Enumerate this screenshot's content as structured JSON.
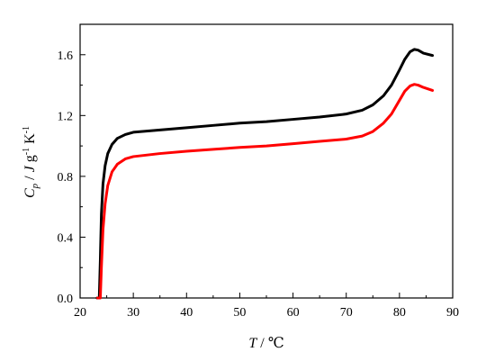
{
  "chart_data": {
    "type": "line",
    "xlabel_var": "T",
    "xlabel_unit": "℃",
    "ylabel_var": "C",
    "ylabel_sub": "p",
    "ylabel_unit_main": "J g",
    "ylabel_unit_exp": "-1",
    "ylabel_unit_end": "K",
    "ylabel_unit_end_exp": "-1",
    "xlim": [
      20,
      90
    ],
    "ylim": [
      0.0,
      1.8
    ],
    "x_ticks": [
      20,
      30,
      40,
      50,
      60,
      70,
      80,
      90
    ],
    "y_ticks": [
      0.0,
      0.4,
      0.8,
      1.2,
      1.6
    ],
    "y_tick_labels": [
      "0.0",
      "0.4",
      "0.8",
      "1.2",
      "1.6"
    ],
    "series": [
      {
        "color": "#000000",
        "points": [
          [
            23.2,
            0.0
          ],
          [
            23.6,
            0.0
          ],
          [
            23.8,
            0.25
          ],
          [
            24.0,
            0.55
          ],
          [
            24.3,
            0.75
          ],
          [
            24.7,
            0.87
          ],
          [
            25.2,
            0.95
          ],
          [
            26.0,
            1.01
          ],
          [
            27.0,
            1.05
          ],
          [
            28.5,
            1.075
          ],
          [
            30,
            1.09
          ],
          [
            35,
            1.105
          ],
          [
            40,
            1.12
          ],
          [
            45,
            1.135
          ],
          [
            50,
            1.15
          ],
          [
            55,
            1.16
          ],
          [
            60,
            1.175
          ],
          [
            65,
            1.19
          ],
          [
            70,
            1.21
          ],
          [
            73,
            1.235
          ],
          [
            75,
            1.27
          ],
          [
            77,
            1.33
          ],
          [
            78.5,
            1.4
          ],
          [
            80,
            1.5
          ],
          [
            81,
            1.57
          ],
          [
            82,
            1.62
          ],
          [
            82.8,
            1.635
          ],
          [
            83.5,
            1.63
          ],
          [
            84.5,
            1.61
          ],
          [
            86.2,
            1.595
          ]
        ]
      },
      {
        "color": "#ff0000",
        "points": [
          [
            23.3,
            0.0
          ],
          [
            23.8,
            0.0
          ],
          [
            24.0,
            0.2
          ],
          [
            24.3,
            0.45
          ],
          [
            24.7,
            0.62
          ],
          [
            25.2,
            0.74
          ],
          [
            26.0,
            0.83
          ],
          [
            27.0,
            0.88
          ],
          [
            28.5,
            0.915
          ],
          [
            30,
            0.93
          ],
          [
            35,
            0.95
          ],
          [
            40,
            0.965
          ],
          [
            45,
            0.978
          ],
          [
            50,
            0.99
          ],
          [
            55,
            1.0
          ],
          [
            60,
            1.015
          ],
          [
            65,
            1.03
          ],
          [
            70,
            1.045
          ],
          [
            73,
            1.065
          ],
          [
            75,
            1.095
          ],
          [
            77,
            1.15
          ],
          [
            78.5,
            1.21
          ],
          [
            80,
            1.3
          ],
          [
            81,
            1.36
          ],
          [
            82,
            1.395
          ],
          [
            82.8,
            1.405
          ],
          [
            83.5,
            1.4
          ],
          [
            84.5,
            1.385
          ],
          [
            86.2,
            1.365
          ]
        ]
      }
    ]
  }
}
